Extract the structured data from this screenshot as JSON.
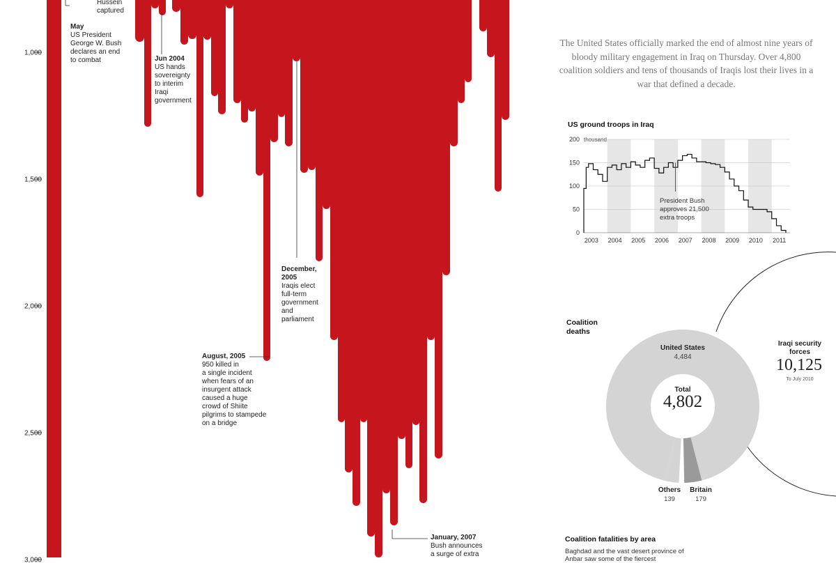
{
  "drip_chart": {
    "y_ticks": [
      "1,000",
      "1,500",
      "2,000",
      "2,500",
      "3,000"
    ],
    "color": "#c4161c",
    "annotations": [
      {
        "title": "",
        "text": [
          "Hussein",
          "captured"
        ]
      },
      {
        "title": "May",
        "text": [
          "US President",
          "George W. Bush",
          "declares an end",
          "to combat"
        ]
      },
      {
        "title": "Jun 2004",
        "text": [
          "US hands",
          "sovereignty",
          "to interim",
          "Iraqi",
          "government"
        ]
      },
      {
        "title": "December, 2005",
        "text": [
          "Iraqis elect",
          "full-term",
          "government",
          "and",
          "parliament"
        ]
      },
      {
        "title": "August, 2005",
        "text": [
          "950 killed in",
          "a single incident",
          "when fears of an",
          "insurgent attack",
          "caused a huge",
          "crowd of Shiite",
          "pilgrims to stampede",
          "on a bridge"
        ]
      },
      {
        "title": "January, 2007",
        "text": [
          "Bush announces",
          "a surge of extra"
        ]
      }
    ]
  },
  "intro": "The United States officially marked the end of almost nine years of bloody military engagement in Iraq on Thursday. Over 4,800 coalition soldiers and tens of thousands of Iraqis lost their lives in a war that defined a decade.",
  "chart_data": [
    {
      "type": "line",
      "title": "US ground troops in Iraq",
      "y_unit": "thousand",
      "ylim": [
        0,
        200
      ],
      "yticks": [
        0,
        50,
        100,
        150,
        200
      ],
      "x_labels": [
        "2003",
        "2004",
        "2005",
        "2006",
        "2007",
        "2008",
        "2009",
        "2010",
        "2011"
      ],
      "annotation": "President Bush approves 21,500 extra troops",
      "series": [
        {
          "x": [
            2003.0,
            2003.1,
            2003.2,
            2003.4,
            2003.6,
            2003.8,
            2004.0,
            2004.2,
            2004.4,
            2004.6,
            2004.8,
            2005.0,
            2005.2,
            2005.4,
            2005.6,
            2005.8,
            2006.0,
            2006.2,
            2006.4,
            2006.6,
            2006.8,
            2007.0,
            2007.2,
            2007.4,
            2007.6,
            2007.8,
            2008.0,
            2008.2,
            2008.4,
            2008.6,
            2008.8,
            2009.0,
            2009.2,
            2009.4,
            2009.6,
            2009.8,
            2010.0,
            2010.2,
            2010.4,
            2010.6,
            2010.8,
            2011.0,
            2011.2,
            2011.4,
            2011.6
          ],
          "y": [
            95,
            140,
            148,
            135,
            125,
            110,
            140,
            145,
            135,
            148,
            140,
            152,
            145,
            140,
            155,
            160,
            138,
            128,
            140,
            150,
            140,
            155,
            165,
            168,
            160,
            152,
            152,
            150,
            148,
            146,
            140,
            130,
            115,
            100,
            90,
            70,
            55,
            50,
            50,
            50,
            45,
            30,
            15,
            5,
            0
          ]
        }
      ]
    },
    {
      "type": "pie",
      "title": "Coalition deaths",
      "categories": [
        "United States",
        "Britain",
        "Others"
      ],
      "values": [
        4484,
        179,
        139
      ],
      "total_label": "Total",
      "total": "4,802"
    }
  ],
  "donut_labels": {
    "title": "Coalition deaths",
    "us_name": "United States",
    "us_value": "4,484",
    "total_label": "Total",
    "total": "4,802",
    "others_name": "Others",
    "others_value": "139",
    "britain_name": "Britain",
    "britain_value": "179"
  },
  "iraqi": {
    "name": "Iraqi security forces",
    "value": "10,125",
    "note": "To July 2010"
  },
  "area": {
    "title": "Coalition fatalities by area",
    "text": "Baghdad and the vast desert province of Anbar saw some of the fiercest"
  }
}
